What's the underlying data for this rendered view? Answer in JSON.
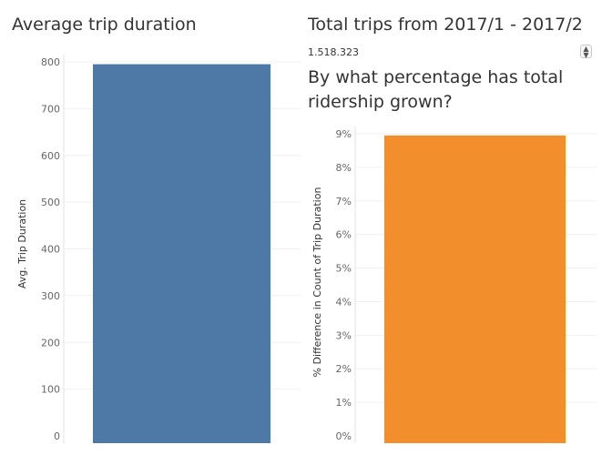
{
  "left_panel": {
    "title": "Average trip duration"
  },
  "right_panel": {
    "title": "Total trips from 2017/1 - 2017/2",
    "total_trips_value": "1.518.323",
    "question": "By what percentage has total ridership grown?",
    "spinner_icon": "spinner-icon"
  },
  "chart_data": [
    {
      "type": "bar",
      "categories": [
        ""
      ],
      "values": [
        795
      ],
      "title": "Average trip duration",
      "ylabel": "Avg. Trip Duration",
      "ylim": [
        0,
        800
      ],
      "yticks": [
        0,
        100,
        200,
        300,
        400,
        500,
        600,
        700,
        800
      ],
      "ytick_labels": [
        "0",
        "100",
        "200",
        "300",
        "400",
        "500",
        "600",
        "700",
        "800"
      ],
      "color": "#4e79a7",
      "grid": true
    },
    {
      "type": "bar",
      "categories": [
        ""
      ],
      "values": [
        8.95
      ],
      "title": "By what percentage has total ridership grown?",
      "ylabel": "% Difference in Count of Trip Duration",
      "ylim": [
        0,
        9
      ],
      "yticks": [
        0,
        1,
        2,
        3,
        4,
        5,
        6,
        7,
        8,
        9
      ],
      "ytick_labels": [
        "0%",
        "1%",
        "2%",
        "3%",
        "4%",
        "5%",
        "6%",
        "7%",
        "8%",
        "9%"
      ],
      "color": "#f28e2b",
      "grid": true
    }
  ]
}
